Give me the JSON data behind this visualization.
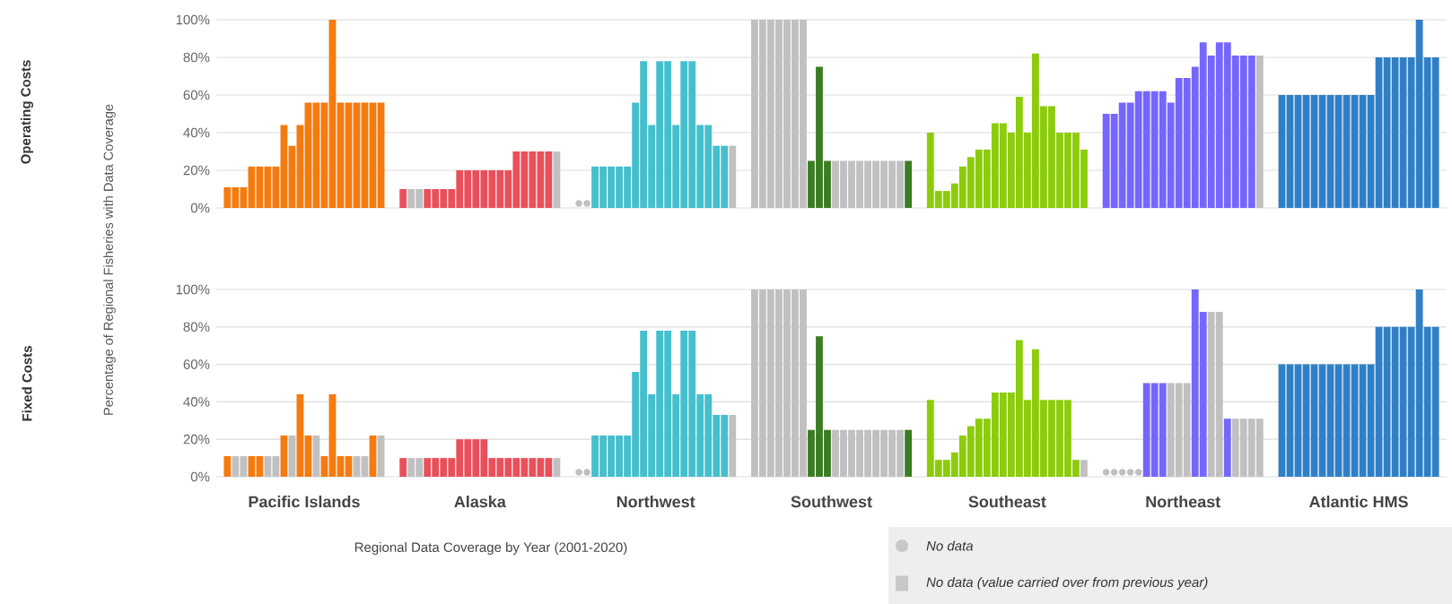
{
  "chart_data": [
    {
      "type": "bar",
      "ylabel": "Operating Costs",
      "annotations": [
        "Percentage of Regional Fisheries with Data Coverage"
      ],
      "categories": [
        null,
        null,
        null,
        null,
        null,
        null,
        null
      ],
      "ylim": [
        0,
        100
      ],
      "yticks": [
        {
          "value": 0,
          "label": "0%"
        },
        {
          "value": 20,
          "label": "20%"
        },
        {
          "value": 40,
          "label": "40%"
        },
        {
          "value": 60,
          "label": "60%"
        },
        {
          "value": 80,
          "label": "80%"
        },
        {
          "value": 100,
          "label": "100%"
        }
      ],
      "grid": "y",
      "series": [
        {
          "values": [
            11,
            10,
            null,
            100,
            40,
            50,
            60
          ],
          "colors": [
            "#f47b10",
            "#e8505b",
            "#c0c0c0",
            "#c0c0c0",
            "#8ccc0a",
            "#7566ff",
            "#2f7fc6"
          ]
        },
        {
          "values": [
            11,
            10,
            null,
            100,
            9,
            50,
            60
          ],
          "colors": [
            "#f47b10",
            "#c0c0c0",
            "#c0c0c0",
            "#c0c0c0",
            "#8ccc0a",
            "#7566ff",
            "#2f7fc6"
          ]
        },
        {
          "values": [
            11,
            10,
            22,
            100,
            9,
            56,
            60
          ],
          "colors": [
            "#f47b10",
            "#c0c0c0",
            "#45bfcc",
            "#c0c0c0",
            "#8ccc0a",
            "#7566ff",
            "#2f7fc6"
          ]
        },
        {
          "values": [
            22,
            10,
            22,
            100,
            13,
            56,
            60
          ],
          "colors": [
            "#f47b10",
            "#e8505b",
            "#45bfcc",
            "#c0c0c0",
            "#8ccc0a",
            "#7566ff",
            "#2f7fc6"
          ]
        },
        {
          "values": [
            22,
            10,
            22,
            100,
            22,
            62,
            60
          ],
          "colors": [
            "#f47b10",
            "#e8505b",
            "#45bfcc",
            "#c0c0c0",
            "#8ccc0a",
            "#7566ff",
            "#2f7fc6"
          ]
        },
        {
          "values": [
            22,
            10,
            22,
            100,
            27,
            62,
            60
          ],
          "colors": [
            "#f47b10",
            "#e8505b",
            "#45bfcc",
            "#c0c0c0",
            "#8ccc0a",
            "#7566ff",
            "#2f7fc6"
          ]
        },
        {
          "values": [
            22,
            10,
            22,
            100,
            31,
            62,
            60
          ],
          "colors": [
            "#f47b10",
            "#e8505b",
            "#45bfcc",
            "#c0c0c0",
            "#8ccc0a",
            "#7566ff",
            "#2f7fc6"
          ]
        },
        {
          "values": [
            44,
            20,
            56,
            25,
            31,
            62,
            60
          ],
          "colors": [
            "#f47b10",
            "#e8505b",
            "#45bfcc",
            "#3b7d23",
            "#8ccc0a",
            "#7566ff",
            "#2f7fc6"
          ]
        },
        {
          "values": [
            33,
            20,
            78,
            75,
            45,
            56,
            60
          ],
          "colors": [
            "#f47b10",
            "#e8505b",
            "#45bfcc",
            "#3b7d23",
            "#8ccc0a",
            "#7566ff",
            "#2f7fc6"
          ]
        },
        {
          "values": [
            44,
            20,
            44,
            25,
            45,
            69,
            60
          ],
          "colors": [
            "#f47b10",
            "#e8505b",
            "#45bfcc",
            "#3b7d23",
            "#8ccc0a",
            "#7566ff",
            "#2f7fc6"
          ]
        },
        {
          "values": [
            56,
            20,
            78,
            25,
            40,
            69,
            60
          ],
          "colors": [
            "#f47b10",
            "#e8505b",
            "#45bfcc",
            "#c0c0c0",
            "#8ccc0a",
            "#7566ff",
            "#2f7fc6"
          ]
        },
        {
          "values": [
            56,
            20,
            78,
            25,
            59,
            75,
            60
          ],
          "colors": [
            "#f47b10",
            "#e8505b",
            "#45bfcc",
            "#c0c0c0",
            "#8ccc0a",
            "#7566ff",
            "#2f7fc6"
          ]
        },
        {
          "values": [
            56,
            20,
            44,
            25,
            40,
            88,
            80
          ],
          "colors": [
            "#f47b10",
            "#e8505b",
            "#45bfcc",
            "#c0c0c0",
            "#8ccc0a",
            "#7566ff",
            "#2f7fc6"
          ]
        },
        {
          "values": [
            100,
            20,
            78,
            25,
            82,
            81,
            80
          ],
          "colors": [
            "#f47b10",
            "#e8505b",
            "#45bfcc",
            "#c0c0c0",
            "#8ccc0a",
            "#7566ff",
            "#2f7fc6"
          ]
        },
        {
          "values": [
            56,
            30,
            78,
            25,
            54,
            88,
            80
          ],
          "colors": [
            "#f47b10",
            "#e8505b",
            "#45bfcc",
            "#c0c0c0",
            "#8ccc0a",
            "#7566ff",
            "#2f7fc6"
          ]
        },
        {
          "values": [
            56,
            30,
            44,
            25,
            54,
            88,
            80
          ],
          "colors": [
            "#f47b10",
            "#e8505b",
            "#45bfcc",
            "#c0c0c0",
            "#8ccc0a",
            "#7566ff",
            "#2f7fc6"
          ]
        },
        {
          "values": [
            56,
            30,
            44,
            25,
            40,
            81,
            80
          ],
          "colors": [
            "#f47b10",
            "#e8505b",
            "#45bfcc",
            "#c0c0c0",
            "#8ccc0a",
            "#7566ff",
            "#2f7fc6"
          ]
        },
        {
          "values": [
            56,
            30,
            33,
            25,
            40,
            81,
            100
          ],
          "colors": [
            "#f47b10",
            "#e8505b",
            "#45bfcc",
            "#c0c0c0",
            "#8ccc0a",
            "#7566ff",
            "#2f7fc6"
          ]
        },
        {
          "values": [
            56,
            30,
            33,
            25,
            40,
            81,
            80
          ],
          "colors": [
            "#f47b10",
            "#e8505b",
            "#45bfcc",
            "#c0c0c0",
            "#8ccc0a",
            "#7566ff",
            "#2f7fc6"
          ]
        },
        {
          "values": [
            56,
            30,
            33,
            25,
            31,
            81,
            80
          ],
          "colors": [
            "#f47b10",
            "#c0c0c0",
            "#c0c0c0",
            "#3b7d23",
            "#8ccc0a",
            "#c0c0c0",
            "#2f7fc6"
          ]
        }
      ]
    },
    {
      "type": "bar",
      "ylabel": "Fixed Costs",
      "xlabel": "Regional Data Coverage by Year (2001-2020)",
      "categories": [
        "Pacific Islands",
        "Alaska",
        "Northwest",
        "Southwest",
        "Southeast",
        "Northeast",
        "Atlantic HMS"
      ],
      "ylim": [
        0,
        100
      ],
      "yticks": [
        {
          "value": 0,
          "label": "0%"
        },
        {
          "value": 20,
          "label": "20%"
        },
        {
          "value": 40,
          "label": "40%"
        },
        {
          "value": 60,
          "label": "60%"
        },
        {
          "value": 80,
          "label": "80%"
        },
        {
          "value": 100,
          "label": "100%"
        }
      ],
      "grid": "y",
      "annotations": [
        "No data",
        "No data (value carried over from previous year)"
      ],
      "series": [
        {
          "values": [
            11,
            10,
            null,
            100,
            41,
            null,
            60
          ],
          "colors": [
            "#f47b10",
            "#e8505b",
            "#c0c0c0",
            "#c0c0c0",
            "#8ccc0a",
            "#c0c0c0",
            "#2f7fc6"
          ]
        },
        {
          "values": [
            11,
            10,
            null,
            100,
            9,
            null,
            60
          ],
          "colors": [
            "#c0c0c0",
            "#c0c0c0",
            "#c0c0c0",
            "#c0c0c0",
            "#8ccc0a",
            "#c0c0c0",
            "#2f7fc6"
          ]
        },
        {
          "values": [
            11,
            10,
            22,
            100,
            9,
            null,
            60
          ],
          "colors": [
            "#c0c0c0",
            "#c0c0c0",
            "#45bfcc",
            "#c0c0c0",
            "#8ccc0a",
            "#c0c0c0",
            "#2f7fc6"
          ]
        },
        {
          "values": [
            11,
            10,
            22,
            100,
            13,
            null,
            60
          ],
          "colors": [
            "#f47b10",
            "#e8505b",
            "#45bfcc",
            "#c0c0c0",
            "#8ccc0a",
            "#c0c0c0",
            "#2f7fc6"
          ]
        },
        {
          "values": [
            11,
            10,
            22,
            100,
            22,
            null,
            60
          ],
          "colors": [
            "#f47b10",
            "#e8505b",
            "#45bfcc",
            "#c0c0c0",
            "#8ccc0a",
            "#c0c0c0",
            "#2f7fc6"
          ]
        },
        {
          "values": [
            11,
            10,
            22,
            100,
            27,
            50,
            60
          ],
          "colors": [
            "#c0c0c0",
            "#e8505b",
            "#45bfcc",
            "#c0c0c0",
            "#8ccc0a",
            "#7566ff",
            "#2f7fc6"
          ]
        },
        {
          "values": [
            11,
            10,
            22,
            100,
            31,
            50,
            60
          ],
          "colors": [
            "#c0c0c0",
            "#e8505b",
            "#45bfcc",
            "#c0c0c0",
            "#8ccc0a",
            "#7566ff",
            "#2f7fc6"
          ]
        },
        {
          "values": [
            22,
            20,
            56,
            25,
            31,
            50,
            60
          ],
          "colors": [
            "#f47b10",
            "#e8505b",
            "#45bfcc",
            "#3b7d23",
            "#8ccc0a",
            "#7566ff",
            "#2f7fc6"
          ]
        },
        {
          "values": [
            22,
            20,
            78,
            75,
            45,
            50,
            60
          ],
          "colors": [
            "#c0c0c0",
            "#e8505b",
            "#45bfcc",
            "#3b7d23",
            "#8ccc0a",
            "#c0c0c0",
            "#2f7fc6"
          ]
        },
        {
          "values": [
            44,
            20,
            44,
            25,
            45,
            50,
            60
          ],
          "colors": [
            "#f47b10",
            "#e8505b",
            "#45bfcc",
            "#3b7d23",
            "#8ccc0a",
            "#c0c0c0",
            "#2f7fc6"
          ]
        },
        {
          "values": [
            22,
            20,
            78,
            25,
            45,
            50,
            60
          ],
          "colors": [
            "#f47b10",
            "#e8505b",
            "#45bfcc",
            "#c0c0c0",
            "#8ccc0a",
            "#c0c0c0",
            "#2f7fc6"
          ]
        },
        {
          "values": [
            22,
            10,
            78,
            25,
            73,
            100,
            60
          ],
          "colors": [
            "#c0c0c0",
            "#e8505b",
            "#45bfcc",
            "#c0c0c0",
            "#8ccc0a",
            "#7566ff",
            "#2f7fc6"
          ]
        },
        {
          "values": [
            11,
            10,
            44,
            25,
            41,
            88,
            80
          ],
          "colors": [
            "#f47b10",
            "#e8505b",
            "#45bfcc",
            "#c0c0c0",
            "#8ccc0a",
            "#7566ff",
            "#2f7fc6"
          ]
        },
        {
          "values": [
            44,
            10,
            78,
            25,
            68,
            88,
            80
          ],
          "colors": [
            "#f47b10",
            "#e8505b",
            "#45bfcc",
            "#c0c0c0",
            "#8ccc0a",
            "#c0c0c0",
            "#2f7fc6"
          ]
        },
        {
          "values": [
            11,
            10,
            78,
            25,
            41,
            88,
            80
          ],
          "colors": [
            "#f47b10",
            "#e8505b",
            "#45bfcc",
            "#c0c0c0",
            "#8ccc0a",
            "#c0c0c0",
            "#2f7fc6"
          ]
        },
        {
          "values": [
            11,
            10,
            44,
            25,
            41,
            31,
            80
          ],
          "colors": [
            "#f47b10",
            "#e8505b",
            "#45bfcc",
            "#c0c0c0",
            "#8ccc0a",
            "#7566ff",
            "#2f7fc6"
          ]
        },
        {
          "values": [
            11,
            10,
            44,
            25,
            41,
            31,
            80
          ],
          "colors": [
            "#c0c0c0",
            "#e8505b",
            "#45bfcc",
            "#c0c0c0",
            "#8ccc0a",
            "#c0c0c0",
            "#2f7fc6"
          ]
        },
        {
          "values": [
            11,
            10,
            33,
            25,
            41,
            31,
            100
          ],
          "colors": [
            "#c0c0c0",
            "#e8505b",
            "#45bfcc",
            "#c0c0c0",
            "#8ccc0a",
            "#c0c0c0",
            "#2f7fc6"
          ]
        },
        {
          "values": [
            22,
            10,
            33,
            25,
            9,
            31,
            80
          ],
          "colors": [
            "#f47b10",
            "#e8505b",
            "#45bfcc",
            "#c0c0c0",
            "#8ccc0a",
            "#c0c0c0",
            "#2f7fc6"
          ]
        },
        {
          "values": [
            22,
            10,
            33,
            25,
            9,
            31,
            80
          ],
          "colors": [
            "#c0c0c0",
            "#c0c0c0",
            "#c0c0c0",
            "#3b7d23",
            "#c0c0c0",
            "#c0c0c0",
            "#2f7fc6"
          ]
        }
      ]
    }
  ]
}
